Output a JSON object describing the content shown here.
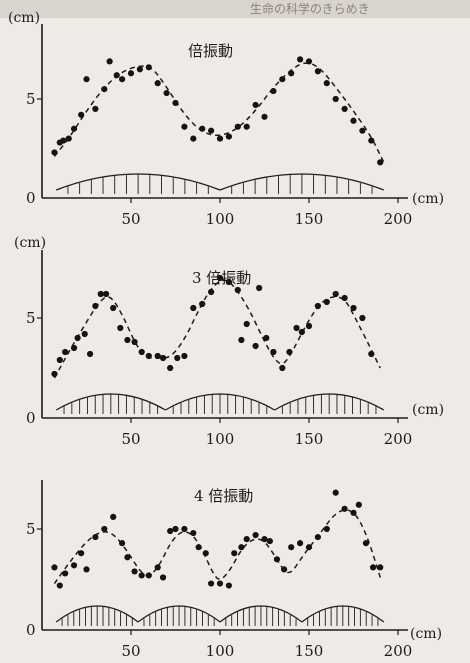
{
  "header": {
    "snippet": "生命の科学のきらめき"
  },
  "chart_data": [
    {
      "type": "scatter",
      "title": "倍振動",
      "ylabel": "(cm)",
      "xlabel": "(cm)",
      "xlim": [
        0,
        200
      ],
      "ylim": [
        0,
        7.5
      ],
      "x_ticks": [
        "50",
        "100",
        "150",
        "200"
      ],
      "y_ticks": [
        "0",
        "5"
      ],
      "points": [
        [
          7,
          2.3
        ],
        [
          10,
          2.8
        ],
        [
          12,
          2.9
        ],
        [
          15,
          3.0
        ],
        [
          18,
          3.5
        ],
        [
          22,
          4.2
        ],
        [
          25,
          6.0
        ],
        [
          30,
          4.5
        ],
        [
          35,
          5.5
        ],
        [
          38,
          6.9
        ],
        [
          42,
          6.2
        ],
        [
          45,
          6.0
        ],
        [
          50,
          6.3
        ],
        [
          55,
          6.5
        ],
        [
          60,
          6.6
        ],
        [
          65,
          5.8
        ],
        [
          70,
          5.3
        ],
        [
          75,
          4.8
        ],
        [
          80,
          3.6
        ],
        [
          85,
          3.0
        ],
        [
          90,
          3.5
        ],
        [
          95,
          3.4
        ],
        [
          100,
          3.0
        ],
        [
          105,
          3.1
        ],
        [
          110,
          3.6
        ],
        [
          115,
          3.6
        ],
        [
          120,
          4.7
        ],
        [
          125,
          4.1
        ],
        [
          130,
          5.4
        ],
        [
          135,
          6.0
        ],
        [
          140,
          6.3
        ],
        [
          145,
          7.0
        ],
        [
          150,
          6.9
        ],
        [
          155,
          6.4
        ],
        [
          160,
          5.8
        ],
        [
          165,
          5.0
        ],
        [
          170,
          4.5
        ],
        [
          175,
          3.9
        ],
        [
          180,
          3.4
        ],
        [
          185,
          2.9
        ],
        [
          190,
          1.8
        ]
      ],
      "fit": [
        [
          7,
          2.1
        ],
        [
          15,
          3.0
        ],
        [
          25,
          4.4
        ],
        [
          35,
          5.6
        ],
        [
          45,
          6.4
        ],
        [
          55,
          6.7
        ],
        [
          62,
          6.6
        ],
        [
          70,
          5.6
        ],
        [
          80,
          4.2
        ],
        [
          90,
          3.3
        ],
        [
          100,
          3.1
        ],
        [
          110,
          3.5
        ],
        [
          120,
          4.4
        ],
        [
          130,
          5.6
        ],
        [
          140,
          6.5
        ],
        [
          148,
          6.9
        ],
        [
          156,
          6.6
        ],
        [
          165,
          5.6
        ],
        [
          175,
          4.4
        ],
        [
          185,
          3.1
        ],
        [
          192,
          1.8
        ]
      ],
      "segments": 2
    },
    {
      "type": "scatter",
      "title": "3 倍振動",
      "ylabel": "(cm)",
      "xlabel": "(cm)",
      "xlim": [
        0,
        200
      ],
      "ylim": [
        0,
        7.5
      ],
      "x_ticks": [
        "50",
        "100",
        "150",
        "200"
      ],
      "y_ticks": [
        "0",
        "5"
      ],
      "points": [
        [
          7,
          2.2
        ],
        [
          10,
          2.9
        ],
        [
          13,
          3.3
        ],
        [
          18,
          3.5
        ],
        [
          20,
          4.0
        ],
        [
          24,
          4.2
        ],
        [
          27,
          3.2
        ],
        [
          30,
          5.6
        ],
        [
          33,
          6.2
        ],
        [
          36,
          6.2
        ],
        [
          40,
          5.5
        ],
        [
          44,
          4.5
        ],
        [
          48,
          3.9
        ],
        [
          52,
          3.8
        ],
        [
          56,
          3.3
        ],
        [
          60,
          3.1
        ],
        [
          65,
          3.1
        ],
        [
          68,
          3.0
        ],
        [
          72,
          2.5
        ],
        [
          76,
          3.0
        ],
        [
          80,
          3.1
        ],
        [
          85,
          5.5
        ],
        [
          90,
          5.7
        ],
        [
          95,
          6.3
        ],
        [
          100,
          7.0
        ],
        [
          105,
          6.8
        ],
        [
          110,
          6.4
        ],
        [
          112,
          3.9
        ],
        [
          115,
          4.7
        ],
        [
          120,
          3.6
        ],
        [
          122,
          6.5
        ],
        [
          126,
          4.0
        ],
        [
          130,
          3.3
        ],
        [
          135,
          2.5
        ],
        [
          139,
          3.3
        ],
        [
          143,
          4.5
        ],
        [
          146,
          4.3
        ],
        [
          150,
          4.6
        ],
        [
          155,
          5.6
        ],
        [
          160,
          5.8
        ],
        [
          165,
          6.2
        ],
        [
          170,
          6.0
        ],
        [
          175,
          5.5
        ],
        [
          180,
          5.0
        ],
        [
          185,
          3.2
        ]
      ],
      "fit": [
        [
          7,
          2.0
        ],
        [
          15,
          3.3
        ],
        [
          25,
          4.8
        ],
        [
          32,
          5.8
        ],
        [
          38,
          6.2
        ],
        [
          45,
          5.2
        ],
        [
          52,
          3.8
        ],
        [
          58,
          3.0
        ],
        [
          65,
          3.0
        ],
        [
          72,
          3.0
        ],
        [
          80,
          3.9
        ],
        [
          88,
          5.4
        ],
        [
          95,
          6.5
        ],
        [
          102,
          7.0
        ],
        [
          108,
          6.6
        ],
        [
          116,
          5.5
        ],
        [
          124,
          4.0
        ],
        [
          130,
          3.0
        ],
        [
          135,
          2.6
        ],
        [
          140,
          3.2
        ],
        [
          148,
          4.6
        ],
        [
          155,
          5.6
        ],
        [
          162,
          6.1
        ],
        [
          170,
          6.0
        ],
        [
          176,
          5.0
        ],
        [
          184,
          3.6
        ],
        [
          190,
          2.5
        ]
      ],
      "segments": 3
    },
    {
      "type": "scatter",
      "title": "4 倍振動",
      "ylabel": "",
      "xlabel": "(cm)",
      "xlim": [
        0,
        200
      ],
      "ylim": [
        0,
        7.5
      ],
      "x_ticks": [
        "50",
        "100",
        "150",
        "200"
      ],
      "y_ticks": [
        "0",
        "5"
      ],
      "points": [
        [
          7,
          3.1
        ],
        [
          10,
          2.2
        ],
        [
          13,
          2.8
        ],
        [
          18,
          3.2
        ],
        [
          22,
          3.8
        ],
        [
          25,
          3.0
        ],
        [
          30,
          4.6
        ],
        [
          35,
          5.0
        ],
        [
          40,
          5.6
        ],
        [
          45,
          4.3
        ],
        [
          48,
          3.6
        ],
        [
          52,
          2.9
        ],
        [
          56,
          2.7
        ],
        [
          60,
          2.7
        ],
        [
          65,
          3.1
        ],
        [
          68,
          2.6
        ],
        [
          72,
          4.9
        ],
        [
          75,
          5.0
        ],
        [
          80,
          5.0
        ],
        [
          85,
          4.8
        ],
        [
          88,
          4.1
        ],
        [
          92,
          3.8
        ],
        [
          95,
          2.3
        ],
        [
          100,
          2.3
        ],
        [
          105,
          2.2
        ],
        [
          108,
          3.8
        ],
        [
          112,
          4.1
        ],
        [
          115,
          4.5
        ],
        [
          120,
          4.7
        ],
        [
          125,
          4.5
        ],
        [
          128,
          4.4
        ],
        [
          132,
          3.5
        ],
        [
          136,
          3.0
        ],
        [
          140,
          4.1
        ],
        [
          145,
          4.3
        ],
        [
          150,
          4.1
        ],
        [
          155,
          4.6
        ],
        [
          160,
          5.0
        ],
        [
          165,
          6.8
        ],
        [
          170,
          6.0
        ],
        [
          175,
          5.8
        ],
        [
          178,
          6.2
        ],
        [
          182,
          4.3
        ],
        [
          186,
          3.1
        ],
        [
          190,
          3.1
        ]
      ],
      "fit": [
        [
          7,
          2.3
        ],
        [
          15,
          3.3
        ],
        [
          25,
          4.4
        ],
        [
          33,
          4.9
        ],
        [
          40,
          4.8
        ],
        [
          48,
          3.9
        ],
        [
          55,
          2.9
        ],
        [
          60,
          2.6
        ],
        [
          66,
          3.2
        ],
        [
          72,
          4.3
        ],
        [
          78,
          4.9
        ],
        [
          84,
          4.8
        ],
        [
          90,
          4.0
        ],
        [
          96,
          2.8
        ],
        [
          100,
          2.4
        ],
        [
          106,
          3.0
        ],
        [
          112,
          4.0
        ],
        [
          118,
          4.5
        ],
        [
          124,
          4.5
        ],
        [
          130,
          3.8
        ],
        [
          136,
          2.9
        ],
        [
          140,
          2.8
        ],
        [
          146,
          3.6
        ],
        [
          152,
          4.3
        ],
        [
          158,
          5.0
        ],
        [
          164,
          5.7
        ],
        [
          170,
          6.0
        ],
        [
          176,
          5.8
        ],
        [
          182,
          4.8
        ],
        [
          188,
          3.2
        ],
        [
          190,
          2.6
        ]
      ],
      "segments": 4
    }
  ]
}
